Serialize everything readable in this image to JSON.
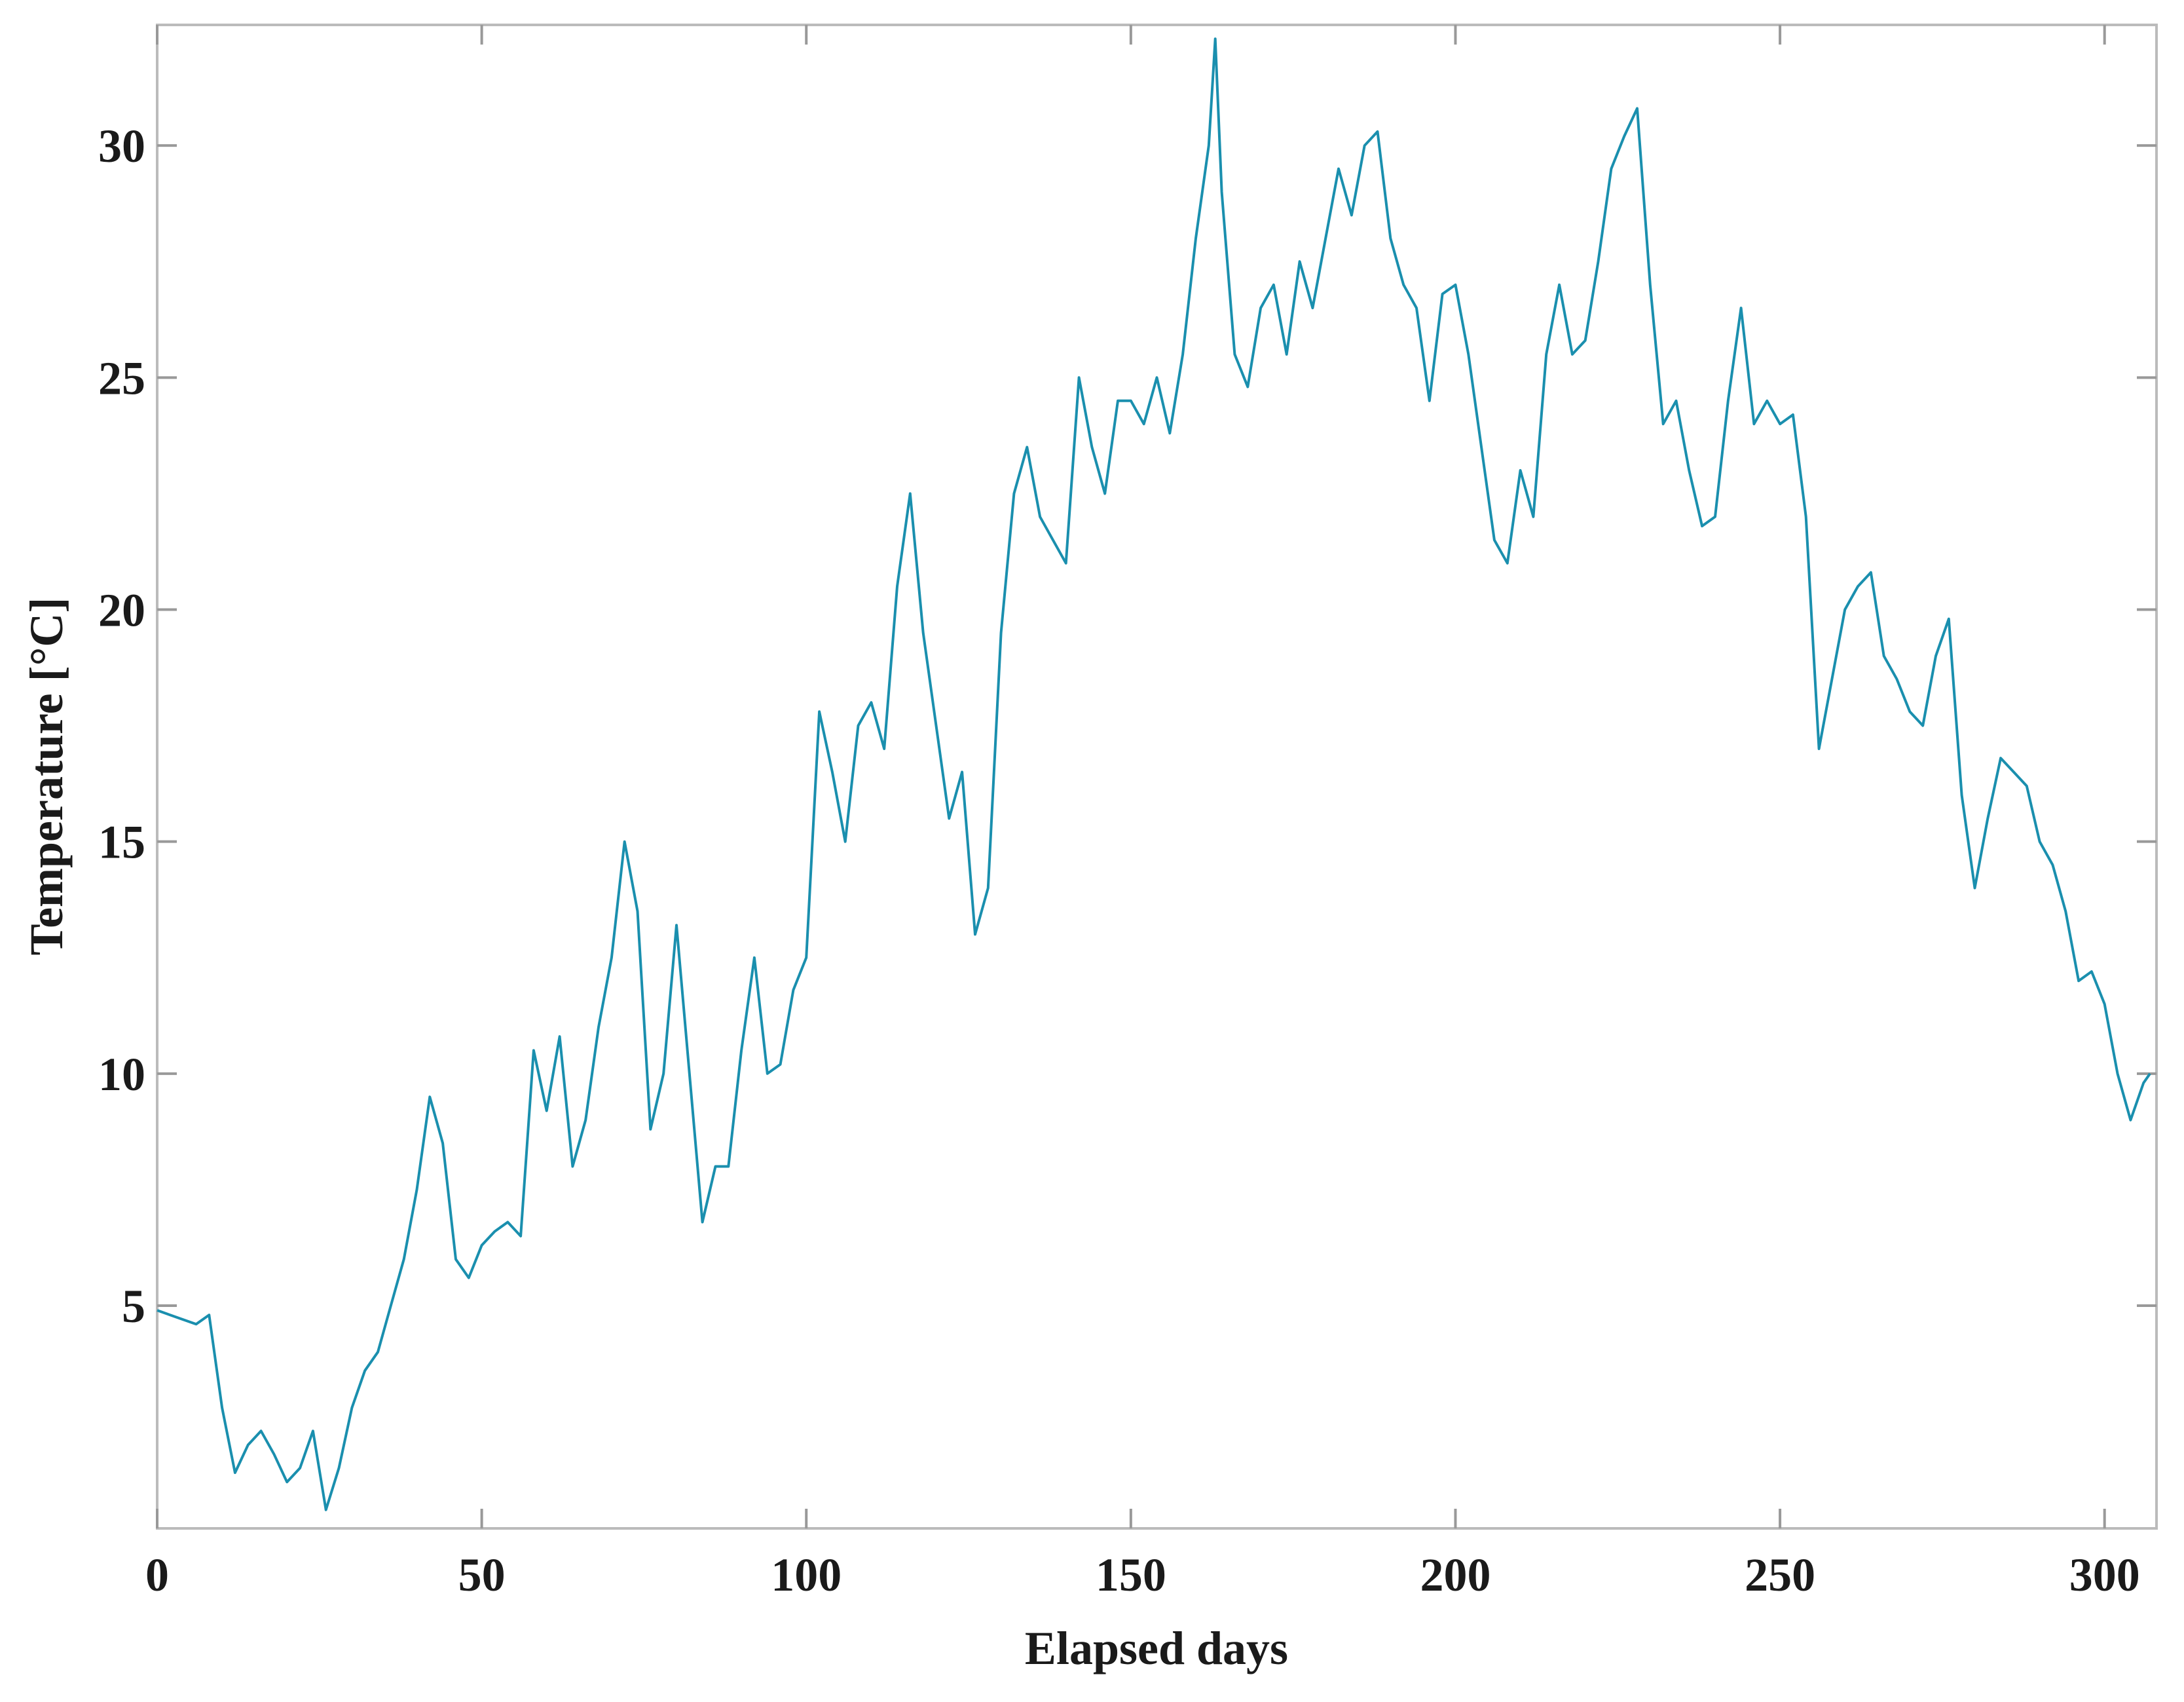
{
  "chart_data": {
    "type": "line",
    "xlabel": "Elapsed days",
    "ylabel": "Temperature [°C]",
    "x": [
      0,
      2,
      4,
      6,
      8,
      10,
      12,
      14,
      16,
      18,
      20,
      22,
      24,
      26,
      28,
      30,
      32,
      34,
      36,
      38,
      40,
      42,
      44,
      46,
      48,
      50,
      52,
      54,
      56,
      58,
      60,
      62,
      64,
      66,
      68,
      70,
      72,
      74,
      76,
      78,
      80,
      82,
      84,
      86,
      88,
      90,
      92,
      94,
      96,
      98,
      100,
      102,
      104,
      106,
      108,
      110,
      112,
      114,
      116,
      118,
      120,
      122,
      124,
      126,
      128,
      130,
      132,
      134,
      136,
      138,
      140,
      142,
      144,
      146,
      148,
      150,
      152,
      154,
      156,
      158,
      160,
      162,
      163,
      164,
      166,
      168,
      170,
      172,
      174,
      176,
      178,
      180,
      182,
      184,
      186,
      188,
      190,
      192,
      194,
      196,
      198,
      200,
      202,
      204,
      206,
      208,
      210,
      212,
      214,
      216,
      218,
      220,
      222,
      224,
      226,
      228,
      230,
      232,
      234,
      236,
      238,
      240,
      242,
      244,
      246,
      248,
      250,
      252,
      254,
      256,
      258,
      260,
      262,
      264,
      266,
      268,
      270,
      272,
      274,
      276,
      278,
      280,
      282,
      284,
      286,
      288,
      290,
      292,
      294,
      296,
      298,
      300,
      302,
      304,
      306,
      307
    ],
    "values": [
      4.9,
      4.8,
      4.7,
      4.6,
      4.8,
      2.8,
      1.4,
      2.0,
      2.3,
      1.8,
      1.2,
      1.5,
      2.3,
      0.6,
      1.5,
      2.8,
      3.6,
      4.0,
      5.0,
      6.0,
      7.5,
      9.5,
      8.5,
      6.0,
      5.6,
      6.3,
      6.6,
      6.8,
      6.5,
      10.5,
      9.2,
      10.8,
      8.0,
      9.0,
      11.0,
      12.5,
      15.0,
      13.5,
      8.8,
      10.0,
      13.2,
      10.0,
      6.8,
      8.0,
      8.0,
      10.5,
      12.5,
      10.0,
      10.2,
      11.8,
      12.5,
      17.8,
      16.5,
      15.0,
      17.5,
      18.0,
      17.0,
      20.5,
      22.5,
      19.5,
      17.5,
      15.5,
      16.5,
      13.0,
      14.0,
      19.5,
      22.5,
      23.5,
      22.0,
      21.5,
      21.0,
      25.0,
      23.5,
      22.5,
      24.5,
      24.5,
      24.0,
      25.0,
      23.8,
      25.5,
      28.0,
      30.0,
      32.3,
      29.0,
      25.5,
      24.8,
      26.5,
      27.0,
      25.5,
      27.5,
      26.5,
      28.0,
      29.5,
      28.5,
      30.0,
      30.3,
      28.0,
      27.0,
      26.5,
      24.5,
      26.8,
      27.0,
      25.5,
      23.5,
      21.5,
      21.0,
      23.0,
      22.0,
      25.5,
      27.0,
      25.5,
      25.8,
      27.5,
      29.5,
      30.2,
      30.8,
      27.0,
      24.0,
      24.5,
      23.0,
      21.8,
      22.0,
      24.5,
      26.5,
      24.0,
      24.5,
      24.0,
      24.2,
      22.0,
      17.0,
      18.5,
      20.0,
      20.5,
      20.8,
      19.0,
      18.5,
      17.8,
      17.5,
      19.0,
      19.8,
      16.0,
      14.0,
      15.5,
      16.8,
      16.5,
      16.2,
      15.0,
      14.5,
      13.5,
      12.0,
      12.2,
      11.5,
      10.0,
      9.0,
      9.8,
      10.0
    ],
    "color": "#1a8fae",
    "xlim": [
      0,
      308
    ],
    "ylim": [
      0.2,
      32.6
    ],
    "xticks": [
      0,
      50,
      100,
      150,
      200,
      250,
      300
    ],
    "yticks": [
      5,
      10,
      15,
      20,
      25,
      30
    ]
  }
}
